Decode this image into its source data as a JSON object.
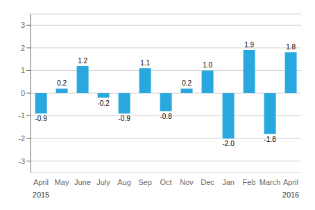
{
  "chart_data": {
    "type": "bar",
    "categories": [
      "April",
      "May",
      "June",
      "July",
      "Aug",
      "Sep",
      "Oct",
      "Nov",
      "Dec",
      "Jan",
      "Feb",
      "March",
      "April"
    ],
    "values": [
      -0.9,
      0.2,
      1.2,
      -0.2,
      -0.9,
      1.1,
      -0.8,
      0.2,
      1.0,
      -2.0,
      1.9,
      -1.8,
      1.8
    ],
    "value_labels": [
      "-0.9",
      "0.2",
      "1.2",
      "-0.2",
      "-0.9",
      "1.1",
      "-0.8",
      "0.2",
      "1.0",
      "-2.0",
      "1.9",
      "-1.8",
      "1.8"
    ],
    "color": "#29a8e0",
    "ylim": [
      -3.5,
      3.5
    ],
    "yticks": [
      -3,
      -2,
      -1,
      0,
      1,
      2,
      3
    ],
    "grid": true,
    "data_labels": true,
    "annotations": [
      {
        "text": "2015",
        "category": 0
      },
      {
        "text": "2016",
        "category": 12
      }
    ]
  }
}
